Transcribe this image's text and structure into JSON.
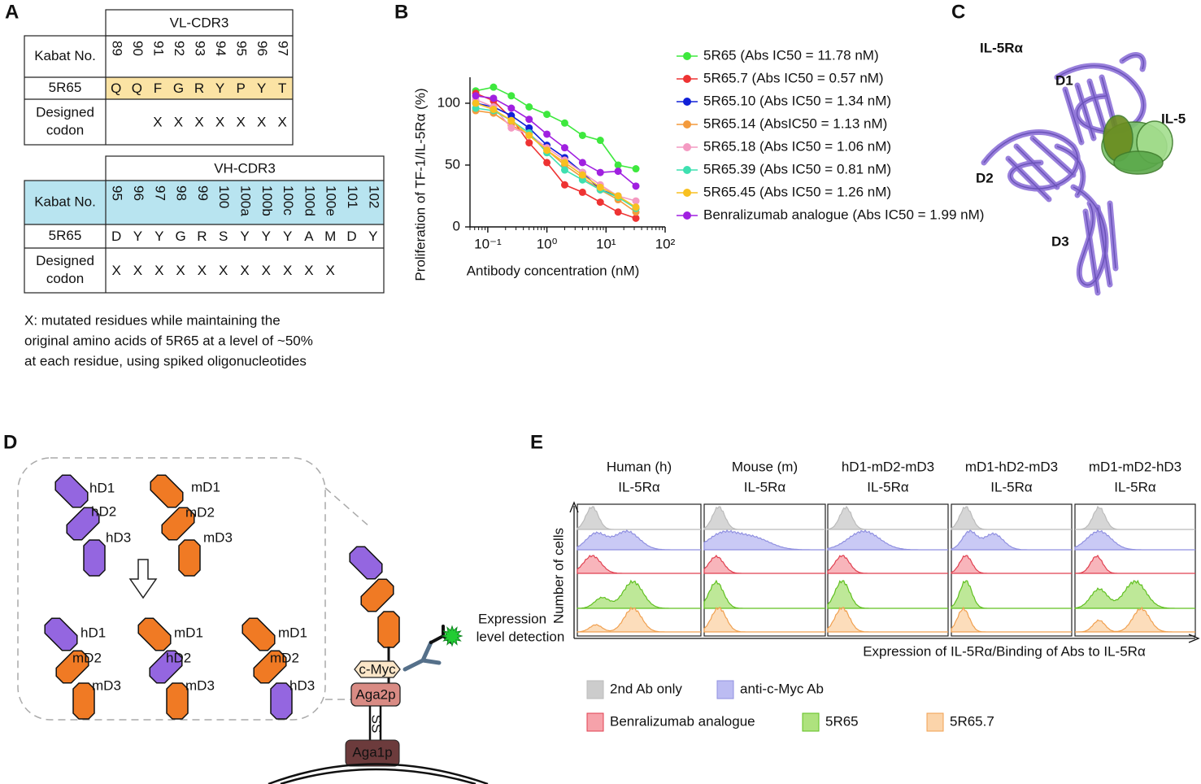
{
  "panel_a": {
    "label": "A",
    "vl_table": {
      "title": "VL-CDR3",
      "row_labels": {
        "kabat": "Kabat No.",
        "parent": "5R65",
        "designed": [
          "Designed",
          "codon"
        ]
      },
      "kabat": [
        "89",
        "90",
        "91",
        "92",
        "93",
        "94",
        "95",
        "96",
        "97"
      ],
      "residues": [
        "Q",
        "Q",
        "F",
        "G",
        "R",
        "Y",
        "P",
        "Y",
        "T"
      ],
      "designed": [
        null,
        null,
        "X",
        "X",
        "X",
        "X",
        "X",
        "X",
        "X"
      ]
    },
    "vh_table": {
      "title": "VH-CDR3",
      "row_labels": {
        "kabat": "Kabat No.",
        "parent": "5R65",
        "designed": [
          "Designed",
          "codon"
        ]
      },
      "kabat": [
        "95",
        "96",
        "97",
        "98",
        "99",
        "100",
        "100a",
        "100b",
        "100c",
        "100d",
        "100e",
        "101",
        "102"
      ],
      "residues": [
        "D",
        "Y",
        "Y",
        "G",
        "R",
        "S",
        "Y",
        "Y",
        "Y",
        "A",
        "M",
        "D",
        "Y"
      ],
      "designed": [
        "X",
        "X",
        "X",
        "X",
        "X",
        "X",
        "X",
        "X",
        "X",
        "X",
        "X",
        null,
        null
      ]
    },
    "footnote": [
      "X: mutated residues while maintaining the",
      "original amino acids of 5R65 at a level of ~50%",
      "at each residue, using spiked oligonucleotides"
    ]
  },
  "panel_b": {
    "label": "B"
  },
  "chart_data": {
    "type": "line",
    "y_label": "Proliferation of TF-1/IL-5Rα (%)",
    "x_label": "Antibody concentration (nM)",
    "xlog": true,
    "xlim": [
      0.05,
      100
    ],
    "xticks": [
      {
        "value": 0.1,
        "label": "10⁻¹"
      },
      {
        "value": 1,
        "label": "10⁰"
      },
      {
        "value": 10,
        "label": "10¹"
      },
      {
        "value": 100,
        "label": "10²"
      }
    ],
    "ylim": [
      0,
      121
    ],
    "yticks": [
      0,
      50,
      100
    ],
    "x": [
      0.0625,
      0.125,
      0.25,
      0.5,
      1,
      2,
      4,
      8,
      16,
      32
    ],
    "series": [
      {
        "name": "5R65 (Abs IC50 = 11.78 nM)",
        "color": "#3ee83e",
        "values": [
          110,
          113,
          106,
          97,
          91,
          84,
          74,
          70,
          50,
          47
        ]
      },
      {
        "name": "5R65.7 (Abs IC50 = 0.57 nM)",
        "color": "#ee3333",
        "values": [
          108,
          102,
          88,
          68,
          52,
          34,
          28,
          20,
          12,
          7
        ]
      },
      {
        "name": "5R65.10 (Abs IC50 = 1.34 nM)",
        "color": "#1020d8",
        "values": [
          100,
          97,
          90,
          80,
          66,
          56,
          44,
          30,
          25,
          15
        ]
      },
      {
        "name": "5R65.14 (AbsIC50 = 1.13 nM)",
        "color": "#f39a3c",
        "values": [
          94,
          92,
          82,
          75,
          62,
          50,
          40,
          30,
          22,
          12
        ]
      },
      {
        "name": "5R65.18 (Abs IC50 = 1.06 nM)",
        "color": "#f49ac2",
        "values": [
          103,
          97,
          80,
          75,
          64,
          54,
          44,
          34,
          25,
          21
        ]
      },
      {
        "name": "5R65.39 (Abs IC50 = 0.81 nM)",
        "color": "#3ee0b0",
        "values": [
          96,
          94,
          86,
          76,
          60,
          46,
          38,
          30,
          24,
          15
        ]
      },
      {
        "name": "5R65.45 (Abs IC50 = 1.26 nM)",
        "color": "#f8c020",
        "values": [
          100,
          95,
          86,
          74,
          62,
          52,
          42,
          32,
          25,
          16
        ]
      },
      {
        "name": "Benralizumab analogue (Abs IC50 = 1.99 nM)",
        "color": "#a020e0",
        "values": [
          106,
          104,
          96,
          87,
          75,
          64,
          52,
          44,
          45,
          33
        ]
      }
    ]
  },
  "panel_c": {
    "label": "C",
    "receptor": "IL-5Rα",
    "ligand": "IL-5",
    "domains": [
      "D1",
      "D2",
      "D3"
    ]
  },
  "panel_d": {
    "label": "D",
    "human": [
      "hD1",
      "hD2",
      "hD3"
    ],
    "mouse": [
      "mD1",
      "mD2",
      "mD3"
    ],
    "chimeras": [
      [
        "hD1",
        "mD2",
        "mD3"
      ],
      [
        "mD1",
        "hD2",
        "mD3"
      ],
      [
        "mD1",
        "mD2",
        "hD3"
      ]
    ],
    "tag": "c-Myc",
    "anchor1": "Aga2p",
    "anchor2": "Aga1p",
    "disulfide": "SS",
    "detection": [
      "Expression",
      "level detection"
    ]
  },
  "panel_e": {
    "label": "E",
    "columns": [
      [
        "Human (h)",
        "IL-5Rα"
      ],
      [
        "Mouse (m)",
        "IL-5Rα"
      ],
      [
        "hD1-mD2-mD3",
        "IL-5Rα"
      ],
      [
        "mD1-hD2-mD3",
        "IL-5Rα"
      ],
      [
        "mD1-mD2-hD3",
        "IL-5Rα"
      ]
    ],
    "y_label": "Number of cells",
    "x_label": "Expression of IL-5Rα/Binding of Abs to IL-5Rα",
    "legend": [
      {
        "name": "2nd Ab only",
        "color": "#cccccc"
      },
      {
        "name": "anti-c-Myc Ab",
        "color": "#bcbcf2"
      },
      {
        "name": "Benralizumab analogue",
        "color": "#f6a2aa"
      },
      {
        "name": "5R65",
        "color": "#aee27e"
      },
      {
        "name": "5R65.7",
        "color": "#fbd4aa"
      }
    ]
  }
}
